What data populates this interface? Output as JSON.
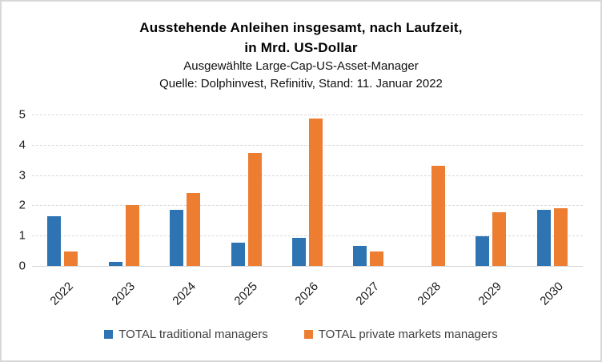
{
  "title": {
    "line1": "Ausstehende Anleihen insgesamt, nach Laufzeit,",
    "line2": "in Mrd. US-Dollar",
    "subtitle1": "Ausgewählte Large-Cap-US-Asset-Manager",
    "subtitle2": "Quelle: Dolphinvest, Refinitiv, Stand: 11. Januar 2022"
  },
  "colors": {
    "traditional_blue": "#2E73B2",
    "private_orange": "#ED7D31",
    "gridline": "#D9D9D9",
    "frame_border": "#D8D8D8",
    "axis_text": "#1A1A1A",
    "legend_text": "#404040"
  },
  "chart_data": {
    "type": "bar",
    "categories": [
      "2022",
      "2023",
      "2024",
      "2025",
      "2026",
      "2027",
      "2028",
      "2029",
      "2030"
    ],
    "series": [
      {
        "name": "TOTAL traditional managers",
        "color": "#2E73B2",
        "values": [
          1.65,
          0.12,
          1.84,
          0.78,
          0.93,
          0.67,
          0,
          0.99,
          1.84
        ]
      },
      {
        "name": "TOTAL private markets managers",
        "color": "#ED7D31",
        "values": [
          0.48,
          2.02,
          2.41,
          3.72,
          4.87,
          0.47,
          3.31,
          1.76,
          1.91
        ]
      }
    ],
    "title": "Ausstehende Anleihen insgesamt, nach Laufzeit, in Mrd. US-Dollar",
    "subtitle": "Ausgewählte Large-Cap-US-Asset-Manager — Quelle: Dolphinvest, Refinitiv, Stand: 11. Januar 2022",
    "xlabel": "",
    "ylabel": "",
    "ylim": [
      0,
      5
    ],
    "yticks": [
      0,
      1,
      2,
      3,
      4,
      5
    ],
    "grid": true,
    "legend_position": "bottom"
  }
}
